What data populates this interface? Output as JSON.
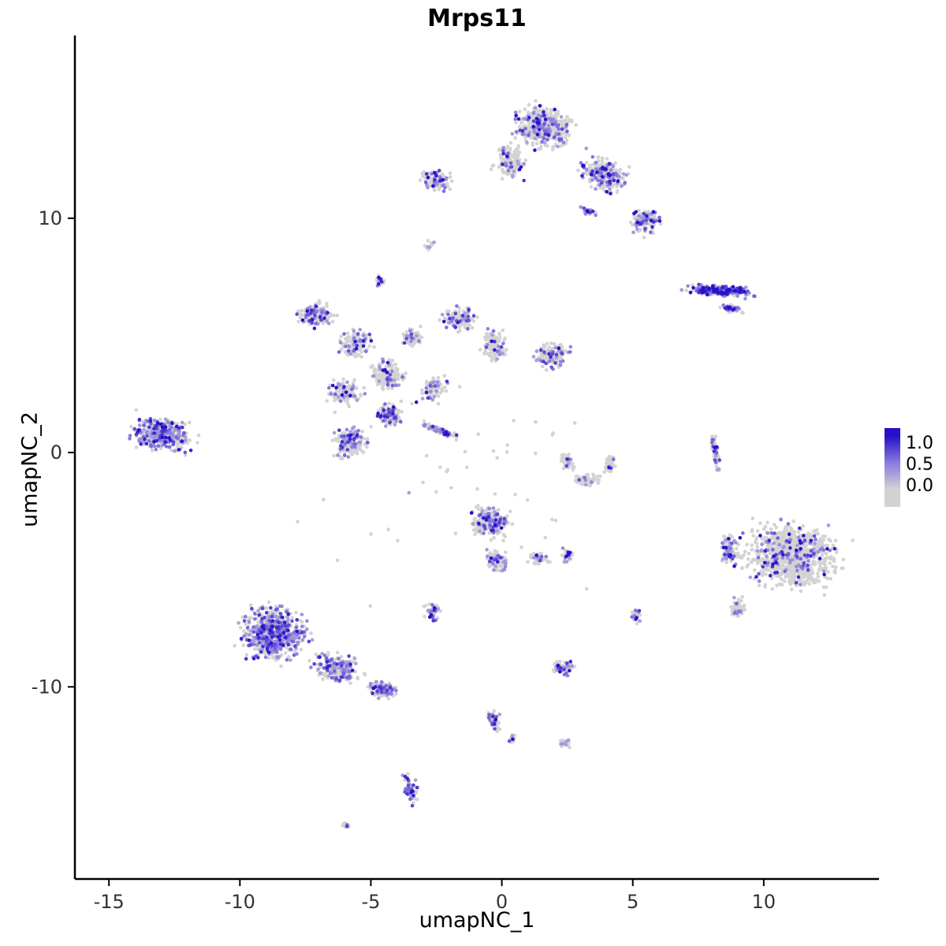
{
  "chart_data": {
    "type": "scatter",
    "title": "Mrps11",
    "xlabel": "umapNC_1",
    "ylabel": "umapNC_2",
    "xlim": [
      -16.3,
      14.4
    ],
    "ylim": [
      -18.2,
      17.8
    ],
    "x_ticks": [
      -15,
      -10,
      -5,
      0,
      5,
      10
    ],
    "y_ticks": [
      -10,
      0,
      10
    ],
    "grid": false,
    "legend_position": "right",
    "point_radius": 2.3,
    "seed": 7,
    "colors": {
      "low": "#d3d3d3",
      "mid": "#8c7dde",
      "high": "#2611c8"
    },
    "legend": {
      "labels": [
        "1.0",
        "0.5",
        "0.0"
      ]
    },
    "clusters": [
      {
        "name": "top-main",
        "cx": 1.6,
        "cy": 13.9,
        "rx": 1.5,
        "ry": 1.15,
        "rot": -15,
        "n": 480,
        "frac": 0.25,
        "boost": 1.0
      },
      {
        "name": "top-arm",
        "cx": 3.9,
        "cy": 11.9,
        "rx": 1.2,
        "ry": 0.85,
        "rot": -30,
        "n": 280,
        "frac": 0.3,
        "boost": 1.0
      },
      {
        "name": "top-tail",
        "cx": 5.5,
        "cy": 9.9,
        "rx": 0.75,
        "ry": 0.85,
        "rot": 0,
        "n": 110,
        "frac": 0.3,
        "boost": 1.0
      },
      {
        "name": "top-left-ext",
        "cx": 0.3,
        "cy": 12.4,
        "rx": 0.8,
        "ry": 0.95,
        "rot": 0,
        "n": 140,
        "frac": 0.15,
        "boost": 1.0
      },
      {
        "name": "top-purple-streak",
        "cx": 3.3,
        "cy": 10.3,
        "rx": 0.45,
        "ry": 0.2,
        "rot": -20,
        "n": 28,
        "frac": 0.75,
        "boost": 1.1
      },
      {
        "name": "upper-left-small",
        "cx": -2.5,
        "cy": 11.6,
        "rx": 0.8,
        "ry": 0.6,
        "rot": -10,
        "n": 120,
        "frac": 0.3,
        "boost": 1.0
      },
      {
        "name": "tiny-upper-left",
        "cx": -2.75,
        "cy": 8.8,
        "rx": 0.28,
        "ry": 0.3,
        "rot": 0,
        "n": 16,
        "frac": 0.3,
        "boost": 1.0
      },
      {
        "name": "tiny-mid-left",
        "cx": -4.6,
        "cy": 7.3,
        "rx": 0.3,
        "ry": 0.38,
        "rot": 0,
        "n": 22,
        "frac": 0.45,
        "boost": 1.05
      },
      {
        "name": "right-streak",
        "cx": 8.3,
        "cy": 6.9,
        "rx": 1.6,
        "ry": 0.32,
        "rot": -4,
        "n": 210,
        "frac": 0.8,
        "boost": 1.15
      },
      {
        "name": "right-streak-tail",
        "cx": 8.8,
        "cy": 6.15,
        "rx": 0.55,
        "ry": 0.22,
        "rot": -8,
        "n": 45,
        "frac": 0.6,
        "boost": 1.0
      },
      {
        "name": "net-a",
        "cx": -7.1,
        "cy": 5.9,
        "rx": 0.85,
        "ry": 0.7,
        "rot": 20,
        "n": 150,
        "frac": 0.3,
        "boost": 1.0
      },
      {
        "name": "net-b",
        "cx": -5.6,
        "cy": 4.7,
        "rx": 0.8,
        "ry": 0.75,
        "rot": 0,
        "n": 140,
        "frac": 0.2,
        "boost": 1.0
      },
      {
        "name": "net-c",
        "cx": -4.4,
        "cy": 3.3,
        "rx": 0.8,
        "ry": 0.85,
        "rot": 0,
        "n": 160,
        "frac": 0.2,
        "boost": 1.0
      },
      {
        "name": "net-d",
        "cx": -6.0,
        "cy": 2.6,
        "rx": 0.85,
        "ry": 0.65,
        "rot": -10,
        "n": 140,
        "frac": 0.25,
        "boost": 1.0
      },
      {
        "name": "net-e",
        "cx": -3.4,
        "cy": 4.9,
        "rx": 0.55,
        "ry": 0.5,
        "rot": 0,
        "n": 70,
        "frac": 0.15,
        "boost": 1.0
      },
      {
        "name": "net-f",
        "cx": -1.6,
        "cy": 5.7,
        "rx": 0.85,
        "ry": 0.65,
        "rot": -20,
        "n": 130,
        "frac": 0.25,
        "boost": 1.0
      },
      {
        "name": "net-g",
        "cx": -0.3,
        "cy": 4.6,
        "rx": 0.65,
        "ry": 0.85,
        "rot": 0,
        "n": 120,
        "frac": 0.2,
        "boost": 1.0
      },
      {
        "name": "net-h",
        "cx": -2.6,
        "cy": 2.7,
        "rx": 0.6,
        "ry": 0.7,
        "rot": 0,
        "n": 90,
        "frac": 0.2,
        "boost": 1.0
      },
      {
        "name": "mid-right-blob",
        "cx": 1.9,
        "cy": 4.2,
        "rx": 0.85,
        "ry": 0.75,
        "rot": 0,
        "n": 150,
        "frac": 0.25,
        "boost": 1.0
      },
      {
        "name": "far-left-blob",
        "cx": -13.0,
        "cy": 0.8,
        "rx": 1.5,
        "ry": 1.0,
        "rot": -10,
        "n": 380,
        "frac": 0.5,
        "boost": 0.95
      },
      {
        "name": "center-blob",
        "cx": -5.8,
        "cy": 0.4,
        "rx": 0.9,
        "ry": 0.85,
        "rot": 0,
        "n": 190,
        "frac": 0.3,
        "boost": 1.0
      },
      {
        "name": "center-blob-upper",
        "cx": -4.3,
        "cy": 1.6,
        "rx": 0.7,
        "ry": 0.65,
        "rot": 0,
        "n": 120,
        "frac": 0.3,
        "boost": 1.0
      },
      {
        "name": "diag-streak",
        "cx": -2.3,
        "cy": 0.9,
        "rx": 1.0,
        "ry": 0.16,
        "rot": -22,
        "n": 80,
        "frac": 0.45,
        "boost": 1.05
      },
      {
        "name": "crescent-left",
        "cx": 2.5,
        "cy": -0.4,
        "rx": 0.3,
        "ry": 0.55,
        "rot": 15,
        "n": 55,
        "frac": 0.06,
        "boost": 1.0
      },
      {
        "name": "crescent-bottom",
        "cx": 3.2,
        "cy": -1.2,
        "rx": 0.75,
        "ry": 0.3,
        "rot": 0,
        "n": 70,
        "frac": 0.06,
        "boost": 1.0
      },
      {
        "name": "crescent-right",
        "cx": 4.1,
        "cy": -0.5,
        "rx": 0.28,
        "ry": 0.55,
        "rot": -15,
        "n": 55,
        "frac": 0.06,
        "boost": 1.0
      },
      {
        "name": "thin-vertical",
        "cx": 8.15,
        "cy": 0.1,
        "rx": 0.16,
        "ry": 1.0,
        "rot": 8,
        "n": 60,
        "frac": 0.3,
        "boost": 1.0
      },
      {
        "name": "big-right",
        "cx": 11.1,
        "cy": -4.4,
        "rx": 2.2,
        "ry": 1.75,
        "rot": -10,
        "n": 880,
        "frac": 0.17,
        "boost": 1.05
      },
      {
        "name": "big-right-west",
        "cx": 8.7,
        "cy": -4.1,
        "rx": 0.5,
        "ry": 1.0,
        "rot": 10,
        "n": 90,
        "frac": 0.3,
        "boost": 1.0
      },
      {
        "name": "big-right-sw",
        "cx": 9.0,
        "cy": -6.6,
        "rx": 0.45,
        "ry": 0.55,
        "rot": 0,
        "n": 55,
        "frac": 0.2,
        "boost": 1.0
      },
      {
        "name": "center-bottom",
        "cx": -0.5,
        "cy": -3.0,
        "rx": 0.95,
        "ry": 0.8,
        "rot": -15,
        "n": 230,
        "frac": 0.3,
        "boost": 1.0
      },
      {
        "name": "center-bottom-tail",
        "cx": -0.2,
        "cy": -4.6,
        "rx": 0.5,
        "ry": 0.7,
        "rot": 10,
        "n": 90,
        "frac": 0.25,
        "boost": 1.0
      },
      {
        "name": "center-bottom-arm",
        "cx": 1.4,
        "cy": -4.5,
        "rx": 0.6,
        "ry": 0.35,
        "rot": 0,
        "n": 55,
        "frac": 0.2,
        "boost": 1.0
      },
      {
        "name": "center-bottom-dot",
        "cx": 2.5,
        "cy": -4.4,
        "rx": 0.25,
        "ry": 0.4,
        "rot": 0,
        "n": 28,
        "frac": 0.45,
        "boost": 1.0
      },
      {
        "name": "bottom-left-main",
        "cx": -8.7,
        "cy": -7.7,
        "rx": 1.6,
        "ry": 1.45,
        "rot": -15,
        "n": 640,
        "frac": 0.55,
        "boost": 0.9
      },
      {
        "name": "bottom-left-ext",
        "cx": -6.3,
        "cy": -9.2,
        "rx": 1.2,
        "ry": 0.75,
        "rot": -18,
        "n": 240,
        "frac": 0.4,
        "boost": 0.9
      },
      {
        "name": "bottom-left-tail",
        "cx": -4.6,
        "cy": -10.1,
        "rx": 0.75,
        "ry": 0.5,
        "rot": -12,
        "n": 110,
        "frac": 0.35,
        "boost": 1.0
      },
      {
        "name": "small-pair",
        "cx": -2.6,
        "cy": -6.8,
        "rx": 0.4,
        "ry": 0.55,
        "rot": 0,
        "n": 50,
        "frac": 0.45,
        "boost": 1.0
      },
      {
        "name": "tiny-right",
        "cx": 5.1,
        "cy": -7.0,
        "rx": 0.25,
        "ry": 0.4,
        "rot": 0,
        "n": 24,
        "frac": 0.4,
        "boost": 1.0
      },
      {
        "name": "small-lower-mid",
        "cx": 2.35,
        "cy": -9.2,
        "rx": 0.6,
        "ry": 0.4,
        "rot": -10,
        "n": 70,
        "frac": 0.45,
        "boost": 1.0
      },
      {
        "name": "lower-streak",
        "cx": -0.3,
        "cy": -11.4,
        "rx": 0.35,
        "ry": 0.6,
        "rot": 25,
        "n": 48,
        "frac": 0.45,
        "boost": 1.0
      },
      {
        "name": "lower-streak-b",
        "cx": 0.4,
        "cy": -12.2,
        "rx": 0.2,
        "ry": 0.25,
        "rot": 0,
        "n": 14,
        "frac": 0.3,
        "boost": 1.0
      },
      {
        "name": "tiny-lower",
        "cx": 2.4,
        "cy": -12.4,
        "rx": 0.28,
        "ry": 0.28,
        "rot": 0,
        "n": 18,
        "frac": 0.3,
        "boost": 1.0
      },
      {
        "name": "bottom-vertical",
        "cx": -3.5,
        "cy": -14.3,
        "rx": 0.35,
        "ry": 0.85,
        "rot": 5,
        "n": 60,
        "frac": 0.5,
        "boost": 0.95
      },
      {
        "name": "bottom-dot",
        "cx": -6.0,
        "cy": -15.9,
        "rx": 0.22,
        "ry": 0.26,
        "rot": 0,
        "n": 12,
        "frac": 0.3,
        "boost": 1.0
      },
      {
        "name": "sparse-background",
        "cx": -1.0,
        "cy": -1.0,
        "rx": 8.0,
        "ry": 7.5,
        "rot": 0,
        "n": 50,
        "frac": 0.12,
        "boost": 1.0
      }
    ]
  }
}
